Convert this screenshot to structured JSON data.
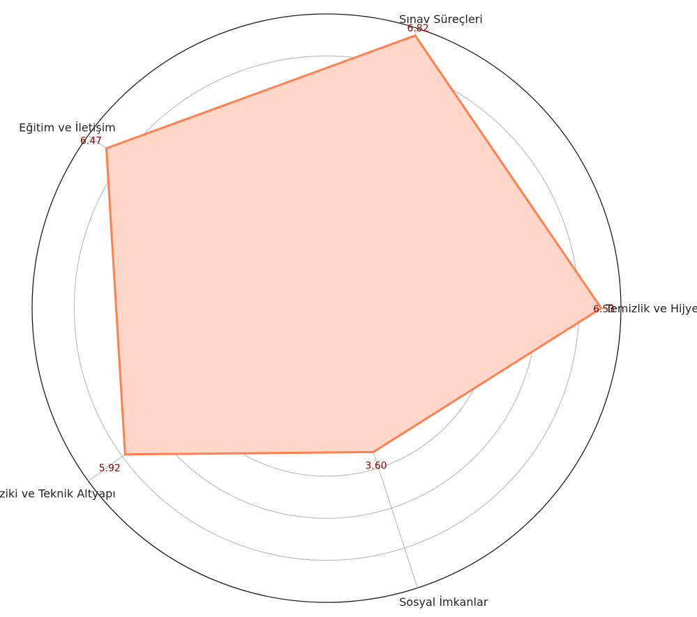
{
  "chart_data": {
    "type": "radar",
    "axes": [
      "Temizlik ve Hijyen",
      "Sınav Süreçleri",
      "Eğitim ve İletişim",
      "Fiziki ve Teknik Altyapı",
      "Sosyal İmkanlar"
    ],
    "values": [
      6.53,
      6.82,
      6.47,
      5.92,
      3.6
    ],
    "value_labels": [
      "6.53",
      "6.82",
      "6.47",
      "5.92",
      "3.60"
    ],
    "rlim": [
      0,
      7
    ],
    "rings": [
      1,
      2,
      3,
      4,
      5,
      6
    ],
    "grid": true,
    "legend": "none"
  },
  "colors": {
    "series_line": "#ff7f50",
    "series_fill": "#ffd6c7",
    "grid": "#bdbdbd",
    "outer_ring": "#1a1a1a",
    "value_label": "#8b0000",
    "axis_label": "#222222"
  }
}
